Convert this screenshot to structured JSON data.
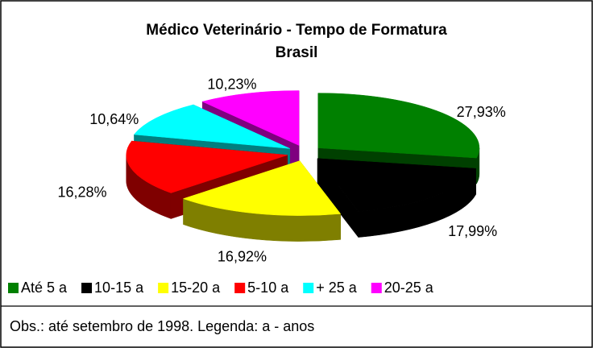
{
  "chart_data": {
    "type": "pie3d",
    "title": "Médico Veterinário - Tempo de Formatura",
    "subtitle": "Brasil",
    "categories": [
      "Até 5 a",
      "10-15 a",
      "15-20 a",
      "5-10 a",
      "+ 25 a",
      "20-25 a"
    ],
    "values": [
      27.93,
      17.99,
      16.92,
      16.28,
      10.64,
      10.23
    ],
    "value_labels": [
      "27,93%",
      "17,99%",
      "16,92%",
      "16,28%",
      "10,64%",
      "10,23%"
    ],
    "colors": [
      "#008000",
      "#000000",
      "#ffff00",
      "#ff0000",
      "#00ffff",
      "#ff00ff"
    ],
    "annotation": "Obs.: até setembro de 1998. Legenda: a - anos",
    "legend": "bottom"
  }
}
